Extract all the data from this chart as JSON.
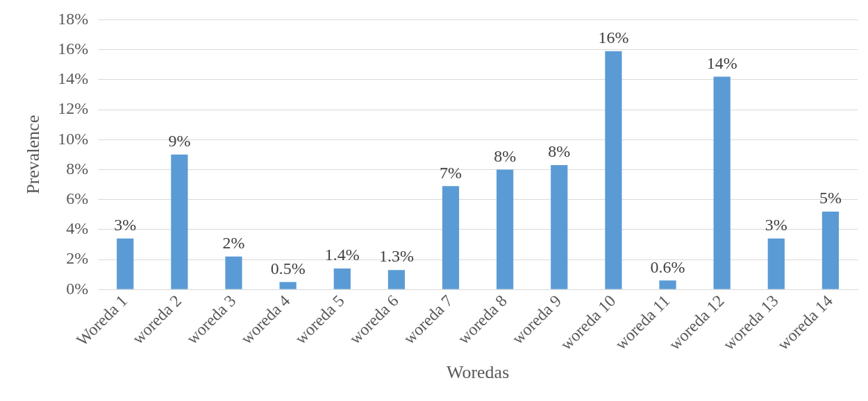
{
  "chart_data": {
    "type": "bar",
    "xlabel": "Woredas",
    "ylabel": "Prevalence",
    "categories": [
      "Woreda 1",
      "woreda 2",
      "woreda 3",
      "woreda 4",
      "woreda 5",
      "woreda 6",
      "woreda 7",
      "woreda 8",
      "woreda 9",
      "woreda 10",
      "woreda 11",
      "woreda 12",
      "woreda 13",
      "woreda 14"
    ],
    "values": [
      3.4,
      9.0,
      2.2,
      0.5,
      1.4,
      1.3,
      6.9,
      8.0,
      8.3,
      15.9,
      0.6,
      14.2,
      3.4,
      5.2
    ],
    "value_labels": [
      "3%",
      "9%",
      "2%",
      "0.5%",
      "1.4%",
      "1.3%",
      "7%",
      "8%",
      "8%",
      "16%",
      "0.6%",
      "14%",
      "3%",
      "5%"
    ],
    "color": "#5b9bd5",
    "ylim": [
      0,
      18
    ],
    "yticks": [
      {
        "value": 0,
        "label": "0%"
      },
      {
        "value": 2,
        "label": "2%"
      },
      {
        "value": 4,
        "label": "4%"
      },
      {
        "value": 6,
        "label": "6%"
      },
      {
        "value": 8,
        "label": "8%"
      },
      {
        "value": 10,
        "label": "10%"
      },
      {
        "value": 12,
        "label": "12%"
      },
      {
        "value": 14,
        "label": "14%"
      },
      {
        "value": 16,
        "label": "16%"
      },
      {
        "value": 18,
        "label": "18%"
      }
    ],
    "grid": "y",
    "legend": false
  }
}
